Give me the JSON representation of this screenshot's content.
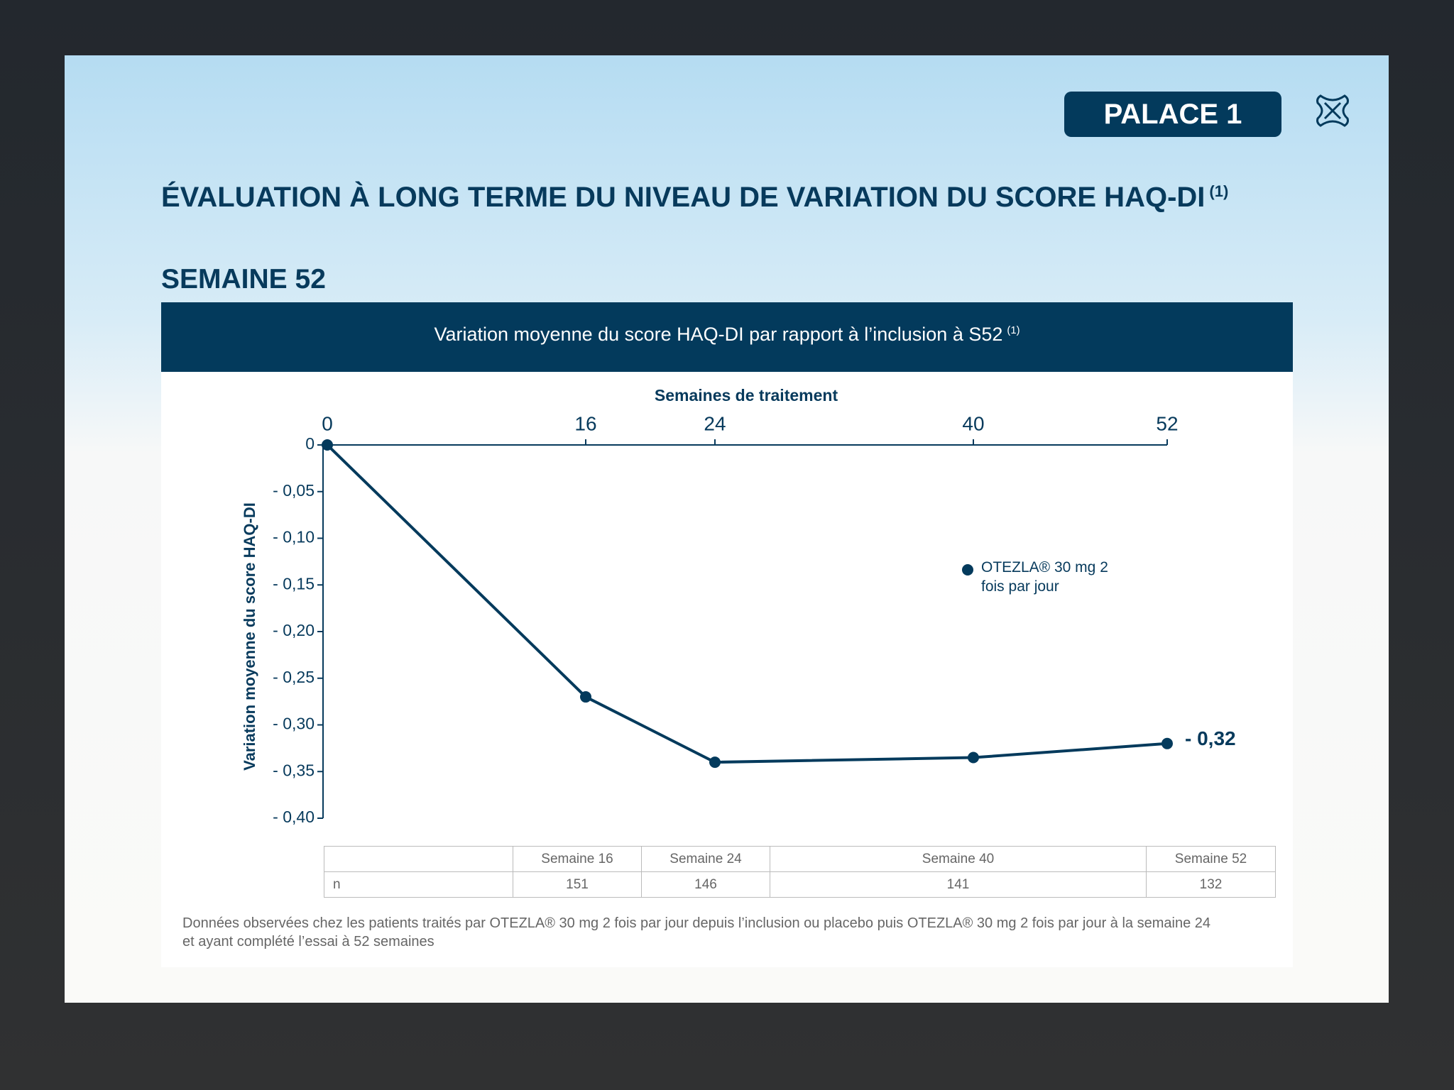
{
  "header": {
    "badge": "PALACE 1"
  },
  "title": "ÉVALUATION À LONG TERME DU NIVEAU DE VARIATION DU SCORE HAQ-DI",
  "title_ref": "(1)",
  "subtitle": "SEMAINE 52",
  "chart_data": {
    "type": "line",
    "title": "Variation moyenne du score HAQ-DI par rapport à l’inclusion à S52",
    "title_ref": "(1)",
    "x_label": "Semaines de traitement",
    "y_label": "Variation moyenne du score HAQ-DI",
    "x": [
      0,
      16,
      24,
      40,
      52
    ],
    "series": [
      {
        "name": "OTEZLA® 30 mg 2 fois par jour",
        "color": "#033a5c",
        "values": [
          0,
          -0.27,
          -0.34,
          -0.335,
          -0.32
        ],
        "value_labels": [
          null,
          null,
          null,
          null,
          "- 0,32"
        ]
      }
    ],
    "xlim": [
      0,
      52
    ],
    "xticks": [
      0,
      16,
      24,
      40,
      52
    ],
    "ylim": [
      -0.4,
      0
    ],
    "yticks": [
      0,
      {
        "value": -0.05,
        "label": "- 0,05"
      },
      {
        "value": -0.1,
        "label": "- 0,10"
      },
      {
        "value": -0.15,
        "label": "- 0,15"
      },
      {
        "value": -0.2,
        "label": "- 0,20"
      },
      {
        "value": -0.25,
        "label": "- 0,25"
      },
      {
        "value": -0.3,
        "label": "- 0,30"
      },
      {
        "value": -0.35,
        "label": "- 0,35"
      },
      {
        "value": -0.4,
        "label": "- 0,40"
      }
    ],
    "grid": false
  },
  "table": {
    "columns": [
      "Semaine 16",
      "Semaine 24",
      "Semaine 40",
      "Semaine 52"
    ],
    "row_label": "n",
    "values": [
      151,
      146,
      141,
      132
    ]
  },
  "footnote": [
    "Données observées chez les patients traités par OTEZLA® 30 mg 2 fois par jour depuis l’inclusion ou placebo puis OTEZLA® 30 mg 2 fois par jour à la semaine 24",
    "et ayant complété l’essai à 52 semaines"
  ]
}
